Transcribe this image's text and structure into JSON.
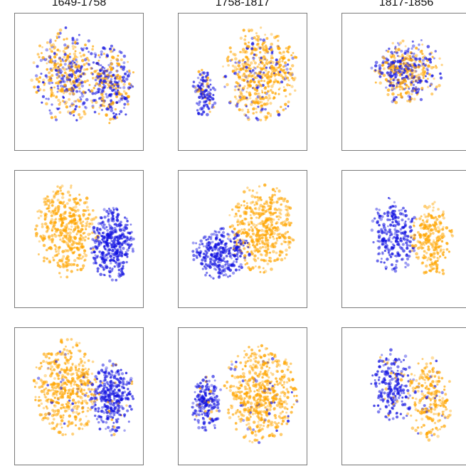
{
  "chart_data": {
    "type": "scatter",
    "title": "",
    "xlabel": "",
    "ylabel": "",
    "grid": false,
    "legend": "none",
    "columns": [
      "1649-1758",
      "1758-1817",
      "1817-1856"
    ],
    "rows": 3,
    "colors": {
      "orange": "#FFA500",
      "blue": "#1010E0",
      "frame": "#7a7a7a"
    },
    "panels": [
      {
        "row": 0,
        "col": 0,
        "mixing": "high",
        "clusters": [
          {
            "color": "orange",
            "cx": 0.4,
            "cy": 0.45,
            "rx": 0.27,
            "ry": 0.34,
            "n": 420
          },
          {
            "color": "blue",
            "cx": 0.75,
            "cy": 0.52,
            "rx": 0.18,
            "ry": 0.28,
            "n": 300
          }
        ]
      },
      {
        "row": 0,
        "col": 1,
        "mixing": "medium",
        "clusters": [
          {
            "color": "orange",
            "cx": 0.64,
            "cy": 0.44,
            "rx": 0.29,
            "ry": 0.35,
            "n": 520
          },
          {
            "color": "blue",
            "cx": 0.2,
            "cy": 0.58,
            "rx": 0.09,
            "ry": 0.18,
            "n": 130
          }
        ]
      },
      {
        "row": 0,
        "col": 2,
        "mixing": "high",
        "clusters": [
          {
            "color": "orange",
            "cx": 0.52,
            "cy": 0.42,
            "rx": 0.26,
            "ry": 0.24,
            "n": 260
          },
          {
            "color": "blue",
            "cx": 0.45,
            "cy": 0.43,
            "rx": 0.22,
            "ry": 0.22,
            "n": 180
          }
        ]
      },
      {
        "row": 1,
        "col": 0,
        "mixing": "none",
        "clusters": [
          {
            "color": "orange",
            "cx": 0.4,
            "cy": 0.44,
            "rx": 0.25,
            "ry": 0.34,
            "n": 440
          },
          {
            "color": "blue",
            "cx": 0.76,
            "cy": 0.53,
            "rx": 0.17,
            "ry": 0.27,
            "n": 360
          }
        ]
      },
      {
        "row": 1,
        "col": 1,
        "mixing": "none",
        "clusters": [
          {
            "color": "orange",
            "cx": 0.65,
            "cy": 0.42,
            "rx": 0.26,
            "ry": 0.32,
            "n": 460
          },
          {
            "color": "blue",
            "cx": 0.33,
            "cy": 0.6,
            "rx": 0.23,
            "ry": 0.19,
            "n": 290
          }
        ]
      },
      {
        "row": 1,
        "col": 2,
        "mixing": "none",
        "clusters": [
          {
            "color": "blue",
            "cx": 0.4,
            "cy": 0.47,
            "rx": 0.18,
            "ry": 0.28,
            "n": 240
          },
          {
            "color": "orange",
            "cx": 0.7,
            "cy": 0.52,
            "rx": 0.16,
            "ry": 0.29,
            "n": 230
          }
        ]
      },
      {
        "row": 2,
        "col": 0,
        "mixing": "low",
        "clusters": [
          {
            "color": "orange",
            "cx": 0.4,
            "cy": 0.43,
            "rx": 0.26,
            "ry": 0.35,
            "n": 450
          },
          {
            "color": "blue",
            "cx": 0.76,
            "cy": 0.52,
            "rx": 0.17,
            "ry": 0.28,
            "n": 340
          }
        ]
      },
      {
        "row": 2,
        "col": 1,
        "mixing": "low",
        "clusters": [
          {
            "color": "orange",
            "cx": 0.64,
            "cy": 0.48,
            "rx": 0.29,
            "ry": 0.36,
            "n": 560
          },
          {
            "color": "blue",
            "cx": 0.22,
            "cy": 0.55,
            "rx": 0.12,
            "ry": 0.21,
            "n": 190
          }
        ]
      },
      {
        "row": 2,
        "col": 2,
        "mixing": "low",
        "clusters": [
          {
            "color": "blue",
            "cx": 0.4,
            "cy": 0.43,
            "rx": 0.17,
            "ry": 0.27,
            "n": 230
          },
          {
            "color": "orange",
            "cx": 0.68,
            "cy": 0.52,
            "rx": 0.18,
            "ry": 0.3,
            "n": 240
          }
        ]
      }
    ]
  }
}
